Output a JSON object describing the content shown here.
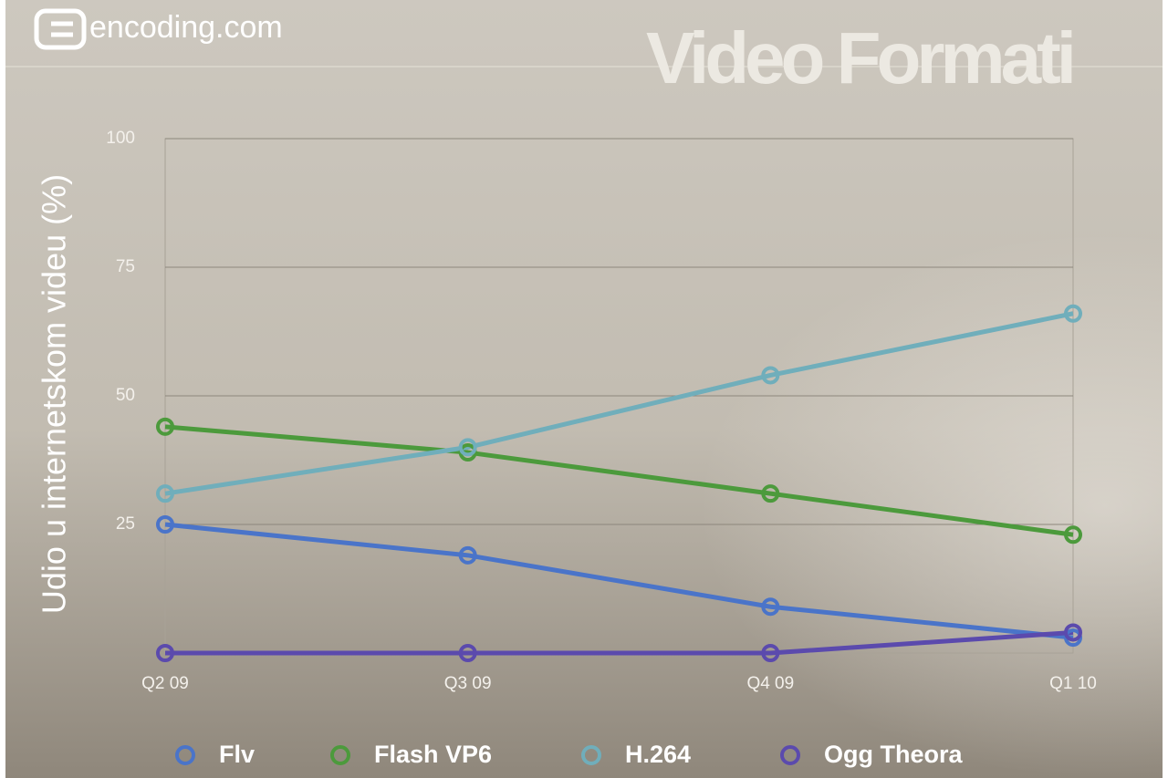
{
  "brand": "encoding.com",
  "chart_data": {
    "type": "line",
    "title": "Video Formati",
    "y_label": "Udio u internetskom videu (%)",
    "categories": [
      "Q2 09",
      "Q3 09",
      "Q4 09",
      "Q1 10"
    ],
    "series": [
      {
        "name": "Flv",
        "color": "#4a74c9",
        "values": [
          25,
          19,
          9,
          3
        ]
      },
      {
        "name": "Flash VP6",
        "color": "#4c9a3c",
        "values": [
          44,
          39,
          31,
          23
        ]
      },
      {
        "name": "H.264",
        "color": "#70aebb",
        "values": [
          31,
          40,
          54,
          66
        ]
      },
      {
        "name": "Ogg Theora",
        "color": "#5b4aad",
        "values": [
          0,
          0,
          0,
          4
        ]
      }
    ],
    "ylim": [
      0,
      100
    ],
    "yticks": [
      25,
      50,
      75,
      100
    ],
    "grid": true
  }
}
